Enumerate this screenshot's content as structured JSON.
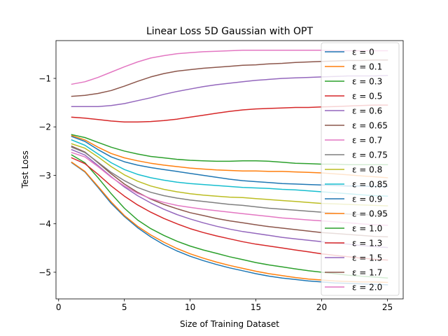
{
  "chart_data": {
    "type": "line",
    "title": "Linear Loss 5D Gaussian with OPT",
    "xlabel": "Size of Training Dataset",
    "ylabel": "Test Loss",
    "xlim": [
      -0.2,
      26.2
    ],
    "ylim": [
      -5.55,
      -0.22
    ],
    "xticks": [
      0,
      5,
      10,
      15,
      20,
      25
    ],
    "xtick_labels": [
      "0",
      "5",
      "10",
      "15",
      "20",
      "25"
    ],
    "yticks": [
      -5,
      -4,
      -3,
      -2,
      -1
    ],
    "ytick_labels": [
      "−5",
      "−4",
      "−3",
      "−2",
      "−1"
    ],
    "grid": false,
    "legend_position": "upper right",
    "x": [
      1,
      2,
      3,
      4,
      5,
      6,
      7,
      8,
      9,
      10,
      11,
      12,
      13,
      14,
      15,
      16,
      17,
      18,
      19,
      20,
      21,
      22,
      23,
      24,
      25
    ],
    "series": [
      {
        "name": "ε = 0",
        "color": "#1f77b4",
        "values": [
          -2.74,
          -2.93,
          -3.25,
          -3.58,
          -3.85,
          -4.08,
          -4.27,
          -4.43,
          -4.56,
          -4.67,
          -4.76,
          -4.84,
          -4.91,
          -4.97,
          -5.03,
          -5.08,
          -5.12,
          -5.15,
          -5.18,
          -5.2,
          -5.22,
          -5.23,
          -5.24,
          -5.25,
          -5.26
        ]
      },
      {
        "name": "ε = 0.1",
        "color": "#ff7f0e",
        "values": [
          -2.73,
          -2.92,
          -3.23,
          -3.55,
          -3.83,
          -4.05,
          -4.23,
          -4.38,
          -4.51,
          -4.62,
          -4.71,
          -4.79,
          -4.86,
          -4.92,
          -4.98,
          -5.03,
          -5.07,
          -5.11,
          -5.14,
          -5.16,
          -5.18,
          -5.19,
          -5.2,
          -5.2,
          -5.21
        ]
      },
      {
        "name": "ε = 0.3",
        "color": "#2ca02c",
        "values": [
          -2.58,
          -2.74,
          -3.05,
          -3.38,
          -3.68,
          -3.92,
          -4.1,
          -4.24,
          -4.36,
          -4.46,
          -4.54,
          -4.61,
          -4.68,
          -4.74,
          -4.8,
          -4.85,
          -4.89,
          -4.93,
          -4.97,
          -5.0,
          -5.03,
          -5.06,
          -5.08,
          -5.1,
          -5.12
        ]
      },
      {
        "name": "ε = 0.5",
        "color": "#d62728",
        "values": [
          -2.64,
          -2.76,
          -2.98,
          -3.22,
          -3.43,
          -3.61,
          -3.76,
          -3.89,
          -4.0,
          -4.1,
          -4.18,
          -4.25,
          -4.31,
          -4.37,
          -4.42,
          -4.46,
          -4.5,
          -4.54,
          -4.58,
          -4.62,
          -4.65,
          -4.68,
          -4.71,
          -4.73,
          -4.75
        ]
      },
      {
        "name": "ε = 0.6",
        "color": "#9467bd",
        "values": [
          -2.47,
          -2.58,
          -2.8,
          -3.03,
          -3.24,
          -3.42,
          -3.57,
          -3.7,
          -3.81,
          -3.9,
          -3.98,
          -4.05,
          -4.11,
          -4.16,
          -4.2,
          -4.24,
          -4.28,
          -4.31,
          -4.34,
          -4.37,
          -4.4,
          -4.42,
          -4.45,
          -4.47,
          -4.49
        ]
      },
      {
        "name": "ε = 0.65",
        "color": "#8c564b",
        "values": [
          -2.4,
          -2.52,
          -2.74,
          -2.97,
          -3.18,
          -3.35,
          -3.49,
          -3.6,
          -3.69,
          -3.77,
          -3.83,
          -3.89,
          -3.94,
          -3.98,
          -4.02,
          -4.06,
          -4.09,
          -4.12,
          -4.15,
          -4.18,
          -4.2,
          -4.22,
          -4.24,
          -4.26,
          -4.27
        ]
      },
      {
        "name": "ε = 0.7",
        "color": "#e377c2",
        "values": [
          -2.53,
          -2.62,
          -2.82,
          -3.04,
          -3.22,
          -3.37,
          -3.48,
          -3.56,
          -3.62,
          -3.66,
          -3.7,
          -3.73,
          -3.76,
          -3.79,
          -3.82,
          -3.85,
          -3.88,
          -3.9,
          -3.92,
          -3.94,
          -3.96,
          -3.98,
          -4.0,
          -4.02,
          -4.03
        ]
      },
      {
        "name": "ε = 0.75",
        "color": "#7f7f7f",
        "values": [
          -2.42,
          -2.53,
          -2.73,
          -2.94,
          -3.11,
          -3.25,
          -3.35,
          -3.42,
          -3.47,
          -3.51,
          -3.54,
          -3.57,
          -3.6,
          -3.62,
          -3.65,
          -3.68,
          -3.7,
          -3.72,
          -3.74,
          -3.76,
          -3.78,
          -3.8,
          -3.81,
          -3.82,
          -3.83
        ]
      },
      {
        "name": "ε = 0.8",
        "color": "#bcbd22",
        "values": [
          -2.35,
          -2.44,
          -2.62,
          -2.82,
          -2.99,
          -3.12,
          -3.22,
          -3.29,
          -3.34,
          -3.38,
          -3.41,
          -3.43,
          -3.45,
          -3.46,
          -3.48,
          -3.5,
          -3.52,
          -3.54,
          -3.56,
          -3.58,
          -3.59,
          -3.6,
          -3.61,
          -3.62,
          -3.63
        ]
      },
      {
        "name": "ε = 0.85",
        "color": "#17becf",
        "values": [
          -2.27,
          -2.38,
          -2.56,
          -2.74,
          -2.88,
          -2.98,
          -3.05,
          -3.1,
          -3.14,
          -3.17,
          -3.19,
          -3.21,
          -3.23,
          -3.25,
          -3.26,
          -3.27,
          -3.29,
          -3.3,
          -3.32,
          -3.34,
          -3.36,
          -3.38,
          -3.4,
          -3.42,
          -3.43
        ]
      },
      {
        "name": "ε = 0.9",
        "color": "#1f77b4",
        "values": [
          -2.2,
          -2.3,
          -2.47,
          -2.62,
          -2.72,
          -2.79,
          -2.84,
          -2.88,
          -2.92,
          -2.96,
          -3.0,
          -3.04,
          -3.08,
          -3.11,
          -3.13,
          -3.15,
          -3.17,
          -3.18,
          -3.19,
          -3.2,
          -3.21,
          -3.22,
          -3.22,
          -3.23,
          -3.23
        ]
      },
      {
        "name": "ε = 0.95",
        "color": "#ff7f0e",
        "values": [
          -2.18,
          -2.27,
          -2.42,
          -2.55,
          -2.64,
          -2.7,
          -2.75,
          -2.79,
          -2.82,
          -2.85,
          -2.87,
          -2.89,
          -2.9,
          -2.91,
          -2.91,
          -2.92,
          -2.92,
          -2.93,
          -2.94,
          -2.95,
          -2.97,
          -2.99,
          -3.01,
          -3.03,
          -3.05
        ]
      },
      {
        "name": "ε = 1.0",
        "color": "#2ca02c",
        "values": [
          -2.16,
          -2.22,
          -2.32,
          -2.42,
          -2.5,
          -2.56,
          -2.61,
          -2.64,
          -2.67,
          -2.69,
          -2.7,
          -2.71,
          -2.71,
          -2.7,
          -2.7,
          -2.71,
          -2.73,
          -2.75,
          -2.76,
          -2.77,
          -2.77,
          -2.78,
          -2.78,
          -2.78,
          -2.78
        ]
      },
      {
        "name": "ε = 1.3",
        "color": "#d62728",
        "values": [
          -1.8,
          -1.82,
          -1.85,
          -1.88,
          -1.9,
          -1.9,
          -1.89,
          -1.87,
          -1.84,
          -1.8,
          -1.76,
          -1.72,
          -1.68,
          -1.65,
          -1.63,
          -1.62,
          -1.61,
          -1.6,
          -1.6,
          -1.59,
          -1.58,
          -1.57,
          -1.56,
          -1.55,
          -1.55
        ]
      },
      {
        "name": "ε = 1.5",
        "color": "#9467bd",
        "values": [
          -1.58,
          -1.58,
          -1.58,
          -1.56,
          -1.52,
          -1.46,
          -1.4,
          -1.33,
          -1.27,
          -1.22,
          -1.17,
          -1.13,
          -1.1,
          -1.07,
          -1.04,
          -1.02,
          -1.0,
          -0.99,
          -0.98,
          -0.97,
          -0.96,
          -0.95,
          -0.95,
          -0.95,
          -0.94
        ]
      },
      {
        "name": "ε = 1.7",
        "color": "#8c564b",
        "values": [
          -1.37,
          -1.35,
          -1.31,
          -1.25,
          -1.16,
          -1.06,
          -0.97,
          -0.9,
          -0.85,
          -0.82,
          -0.79,
          -0.77,
          -0.75,
          -0.73,
          -0.72,
          -0.7,
          -0.69,
          -0.67,
          -0.66,
          -0.65,
          -0.64,
          -0.63,
          -0.63,
          -0.62,
          -0.62
        ]
      },
      {
        "name": "ε = 2.0",
        "color": "#e377c2",
        "values": [
          -1.12,
          -1.07,
          -0.98,
          -0.87,
          -0.76,
          -0.66,
          -0.58,
          -0.53,
          -0.49,
          -0.47,
          -0.45,
          -0.44,
          -0.43,
          -0.42,
          -0.42,
          -0.42,
          -0.42,
          -0.42,
          -0.42,
          -0.42,
          -0.43,
          -0.43,
          -0.43,
          -0.43,
          -0.43
        ]
      }
    ]
  }
}
